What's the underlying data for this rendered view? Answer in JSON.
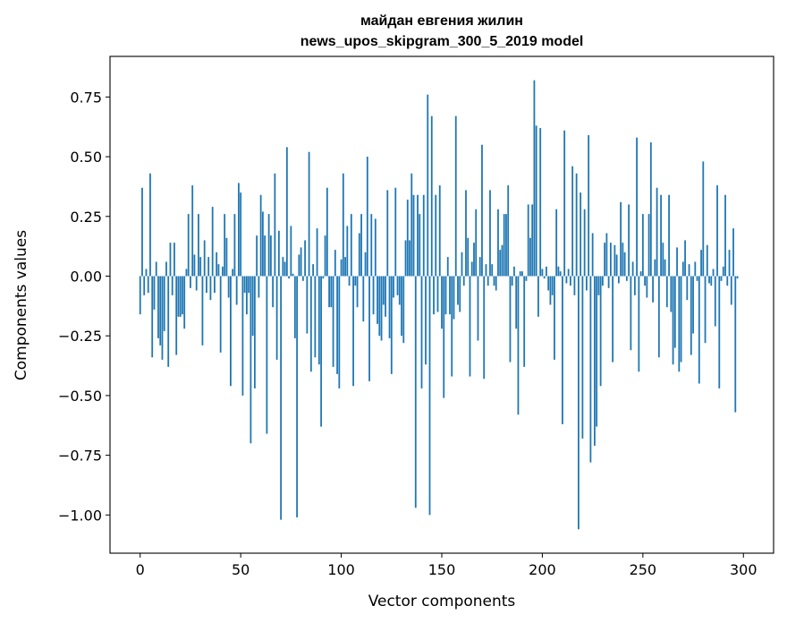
{
  "chart_data": {
    "type": "bar",
    "title_line1": "майдан евгения жилин",
    "title_line2": "news_upos_skipgram_300_5_2019 model",
    "xlabel": "Vector components",
    "ylabel": "Components values",
    "xlim": [
      -15,
      315
    ],
    "ylim": [
      -1.16,
      0.92
    ],
    "xticks": [
      0,
      50,
      100,
      150,
      200,
      250,
      300
    ],
    "yticks": [
      0.75,
      0.5,
      0.25,
      0.0,
      -0.25,
      -0.5,
      -0.75,
      -1.0
    ],
    "ytick_labels": [
      "0.75",
      "0.50",
      "0.25",
      "0.00",
      "−0.25",
      "−0.50",
      "−0.75",
      "−1.00"
    ],
    "bar_color": "#1f77b4",
    "grid": false,
    "values": [
      -0.16,
      0.37,
      -0.08,
      0.03,
      -0.07,
      0.43,
      -0.34,
      -0.14,
      0.06,
      -0.26,
      -0.29,
      -0.35,
      -0.23,
      0.06,
      -0.38,
      0.14,
      -0.08,
      0.14,
      -0.33,
      -0.17,
      -0.17,
      -0.16,
      -0.22,
      0.03,
      0.26,
      -0.05,
      0.38,
      0.09,
      -0.06,
      0.26,
      0.08,
      -0.29,
      0.15,
      -0.07,
      0.08,
      -0.1,
      0.29,
      -0.07,
      0.1,
      0.05,
      -0.32,
      0.04,
      0.26,
      0.16,
      -0.09,
      -0.46,
      0.03,
      0.26,
      -0.12,
      0.39,
      0.35,
      -0.5,
      -0.07,
      -0.16,
      -0.07,
      -0.7,
      -0.25,
      -0.47,
      0.17,
      -0.09,
      0.34,
      0.27,
      0.17,
      -0.66,
      0.26,
      0.17,
      -0.13,
      0.43,
      -0.35,
      0.19,
      -1.02,
      0.08,
      0.06,
      0.54,
      -0.01,
      0.21,
      0.01,
      -0.26,
      -1.01,
      0.09,
      0.12,
      -0.02,
      0.15,
      -0.24,
      0.52,
      -0.4,
      0.05,
      -0.34,
      0.2,
      -0.37,
      -0.63,
      -0.01,
      0.17,
      0.37,
      -0.13,
      -0.13,
      -0.38,
      0.11,
      -0.41,
      -0.47,
      0.07,
      0.43,
      0.08,
      0.21,
      -0.04,
      0.26,
      -0.46,
      -0.04,
      -0.13,
      0.18,
      0.26,
      -0.19,
      0.1,
      0.5,
      -0.44,
      0.26,
      -0.16,
      0.24,
      -0.2,
      -0.25,
      -0.27,
      -0.12,
      -0.17,
      0.36,
      -0.26,
      -0.41,
      -0.09,
      0.37,
      -0.08,
      -0.12,
      -0.25,
      -0.28,
      0.15,
      0.32,
      0.15,
      0.43,
      0.34,
      -0.97,
      0.34,
      0.26,
      -0.47,
      0.34,
      -0.37,
      0.76,
      -1.0,
      0.67,
      -0.16,
      0.34,
      -0.15,
      0.38,
      -0.22,
      -0.51,
      -0.16,
      0.08,
      -0.16,
      -0.42,
      -0.18,
      0.67,
      -0.12,
      -0.15,
      0.1,
      -0.04,
      0.36,
      0.16,
      -0.42,
      0.06,
      0.14,
      0.28,
      -0.27,
      0.08,
      0.55,
      -0.43,
      0.05,
      -0.04,
      0.36,
      0.05,
      -0.04,
      -0.06,
      0.28,
      0.11,
      0.13,
      0.26,
      0.26,
      0.38,
      -0.36,
      -0.04,
      0.04,
      -0.22,
      -0.58,
      0.02,
      0.02,
      -0.38,
      -0.02,
      0.3,
      0.16,
      0.3,
      0.82,
      0.63,
      -0.17,
      0.62,
      0.03,
      -0.01,
      0.04,
      -0.06,
      -0.12,
      -0.08,
      -0.35,
      0.28,
      0.04,
      0.02,
      -0.62,
      0.61,
      -0.03,
      0.03,
      -0.04,
      0.46,
      -0.08,
      0.43,
      -1.06,
      0.35,
      -0.68,
      0.28,
      -0.06,
      0.59,
      -0.78,
      0.18,
      -0.71,
      -0.63,
      -0.08,
      -0.46,
      -0.04,
      0.14,
      0.18,
      -0.05,
      0.14,
      -0.36,
      0.13,
      0.09,
      -0.03,
      0.31,
      0.14,
      0.1,
      -0.02,
      0.3,
      -0.31,
      0.06,
      -0.08,
      0.58,
      -0.4,
      0.02,
      0.26,
      -0.04,
      -0.09,
      0.26,
      0.56,
      -0.11,
      0.07,
      0.37,
      -0.34,
      0.34,
      0.14,
      0.07,
      -0.13,
      0.34,
      -0.15,
      -0.37,
      -0.3,
      0.12,
      -0.4,
      -0.36,
      0.06,
      0.15,
      -0.1,
      0.05,
      -0.33,
      -0.24,
      0.06,
      -0.02,
      -0.45,
      0.11,
      0.48,
      -0.28,
      0.13,
      -0.03,
      -0.04,
      0.03,
      -0.21,
      0.38,
      -0.47,
      -0.02,
      0.04,
      0.34,
      -0.04,
      0.11,
      -0.12,
      0.2,
      -0.57,
      -0.01
    ]
  }
}
